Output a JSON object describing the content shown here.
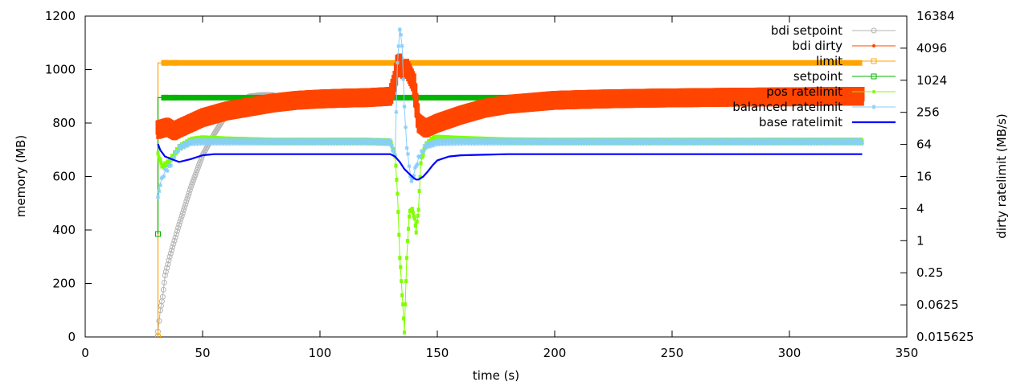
{
  "chart_data": {
    "type": "line",
    "xlabel": "time (s)",
    "ylabel": "memory (MB)",
    "y2label": "dirty ratelimit (MB/s)",
    "xlim": [
      0,
      350
    ],
    "ylim": [
      0,
      1200
    ],
    "y2lim": [
      0.015625,
      16384
    ],
    "y2scale": "log2",
    "xticks": [
      "0",
      "50",
      "100",
      "150",
      "200",
      "250",
      "300",
      "350"
    ],
    "yticks": [
      "0",
      "200",
      "400",
      "600",
      "800",
      "1000",
      "1200"
    ],
    "y2ticks": [
      "0.015625",
      "0.0625",
      "0.25",
      "1",
      "4",
      "16",
      "64",
      "256",
      "1024",
      "4096",
      "16384"
    ],
    "grid": false,
    "legend_position": "top-right",
    "series": [
      {
        "name": "bdi setpoint",
        "axis": "left",
        "color": "#b4b4b4",
        "marker": "circle",
        "x": [
          31,
          31.5,
          32,
          33,
          34,
          36,
          40,
          45,
          50,
          55,
          60,
          65,
          70,
          75,
          80
        ],
        "y": [
          20,
          60,
          100,
          150,
          230,
          300,
          420,
          560,
          680,
          760,
          830,
          880,
          900,
          905,
          905
        ]
      },
      {
        "name": "bdi dirty",
        "axis": "left",
        "color": "#ff4500",
        "marker": "dot",
        "x": [
          31,
          35,
          38,
          40,
          45,
          50,
          60,
          70,
          80,
          90,
          100,
          110,
          120,
          130,
          132,
          133,
          134,
          135,
          137,
          140,
          142,
          145,
          150,
          160,
          170,
          180,
          200,
          220,
          240,
          260,
          280,
          300,
          320,
          331
        ],
        "y": [
          775,
          785,
          770,
          780,
          800,
          820,
          845,
          860,
          875,
          885,
          890,
          893,
          895,
          900,
          960,
          1020,
          1025,
          1000,
          1005,
          950,
          800,
          780,
          800,
          830,
          855,
          870,
          885,
          890,
          893,
          895,
          897,
          898,
          900,
          900
        ]
      },
      {
        "name": "limit",
        "axis": "left",
        "color": "#ffa500",
        "marker": "square",
        "x": [
          31,
          31,
          331
        ],
        "y": [
          0,
          1025,
          1025
        ]
      },
      {
        "name": "setpoint",
        "axis": "left",
        "color": "#00b400",
        "marker": "square",
        "x": [
          31,
          31,
          33,
          331
        ],
        "y": [
          385,
          895,
          895,
          895
        ]
      },
      {
        "name": "pos ratelimit",
        "axis": "right",
        "color": "#7fff00",
        "marker": "dot",
        "x": [
          31,
          33,
          35,
          37,
          40,
          45,
          50,
          60,
          80,
          100,
          120,
          130,
          132,
          133,
          134,
          135,
          136,
          137,
          138,
          139,
          140,
          141,
          142,
          143,
          145,
          148,
          150,
          160,
          180,
          200,
          250,
          300,
          331
        ],
        "y": [
          40,
          24,
          28,
          36,
          55,
          75,
          80,
          76,
          72,
          72,
          72,
          70,
          40,
          8,
          0.5,
          0.1,
          0.02,
          0.5,
          3,
          4,
          3,
          1.5,
          4,
          30,
          60,
          80,
          82,
          78,
          73,
          72,
          72,
          72,
          72
        ]
      },
      {
        "name": "balanced ratelimit",
        "axis": "right",
        "color": "#87cefa",
        "marker": "star",
        "x": [
          31,
          32,
          34,
          36,
          38,
          40,
          45,
          50,
          60,
          80,
          100,
          120,
          130,
          132,
          133,
          134,
          135,
          136,
          137,
          138,
          139,
          140,
          142,
          145,
          150,
          160,
          180,
          200,
          250,
          300,
          331
        ],
        "y": [
          6,
          12,
          20,
          25,
          40,
          55,
          70,
          72,
          72,
          72,
          72,
          72,
          70,
          40,
          2000,
          10000,
          4500,
          300,
          60,
          25,
          12,
          18,
          35,
          60,
          70,
          72,
          72,
          72,
          72,
          72,
          72
        ]
      },
      {
        "name": "base ratelimit",
        "axis": "right",
        "color": "#0000ff",
        "marker": "line",
        "x": [
          31,
          32,
          34,
          36,
          40,
          45,
          50,
          55,
          60,
          80,
          100,
          120,
          130,
          132,
          134,
          136,
          138,
          140,
          141,
          142,
          144,
          146,
          148,
          150,
          155,
          160,
          170,
          180,
          200,
          250,
          300,
          331
        ],
        "y": [
          65,
          50,
          38,
          35,
          30,
          34,
          40,
          42,
          42,
          42,
          42,
          42,
          42,
          38,
          30,
          22,
          18,
          15,
          14,
          14,
          16,
          20,
          26,
          32,
          38,
          40,
          41,
          42,
          42,
          42,
          42,
          42
        ]
      }
    ]
  }
}
